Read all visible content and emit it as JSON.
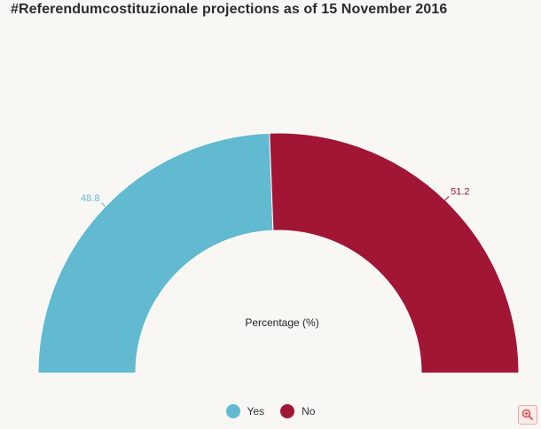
{
  "header": {
    "title": "#Referendumcostituzionale projections as of 15 November 2016"
  },
  "chart_data": {
    "type": "pie",
    "subtype": "semi-donut",
    "title": "#Referendumcostituzionale projections as of 15 November 2016",
    "center_label": "Percentage (%)",
    "categories": [
      "Yes",
      "No"
    ],
    "values": [
      48.8,
      51.2
    ],
    "labels": [
      "48.8",
      "51.2"
    ],
    "colors": [
      "#62bad0",
      "#a11635"
    ],
    "legend_position": "bottom"
  },
  "legend": {
    "items": [
      {
        "label": "Yes"
      },
      {
        "label": "No"
      }
    ]
  },
  "toolbar": {
    "zoom_icon": "zoom-in-icon"
  }
}
